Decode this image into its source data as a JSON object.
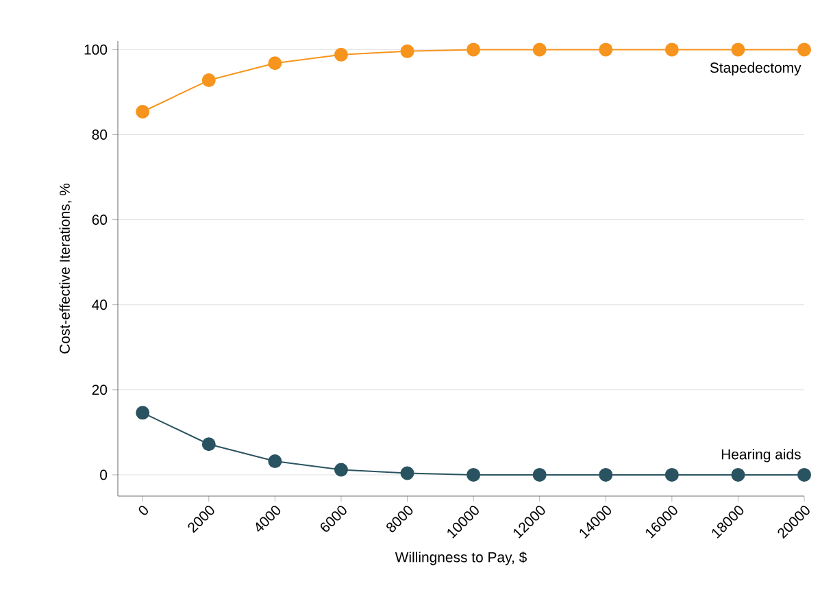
{
  "chart_data": {
    "type": "line",
    "xlabel": "Willingness to Pay, $",
    "ylabel": "Cost-effective Iterations, %",
    "x": [
      0,
      2000,
      4000,
      6000,
      8000,
      10000,
      12000,
      14000,
      16000,
      18000,
      20000
    ],
    "series": [
      {
        "name": "Stapedectomy",
        "color": "#f7941d",
        "values": [
          85.4,
          92.8,
          96.8,
          98.8,
          99.6,
          100,
          100,
          100,
          100,
          100,
          100
        ]
      },
      {
        "name": "Hearing aids",
        "color": "#2a5361",
        "values": [
          14.6,
          7.2,
          3.2,
          1.2,
          0.4,
          0,
          0,
          0,
          0,
          0,
          0
        ]
      }
    ],
    "xlim": [
      -750,
      20000
    ],
    "ylim": [
      -5,
      102
    ],
    "xticks": [
      0,
      2000,
      4000,
      6000,
      8000,
      10000,
      12000,
      14000,
      16000,
      18000,
      20000
    ],
    "yticks": [
      0,
      20,
      40,
      60,
      80,
      100
    ],
    "grid": "y",
    "marker": "circle",
    "line_style": "solid",
    "legend": false
  }
}
